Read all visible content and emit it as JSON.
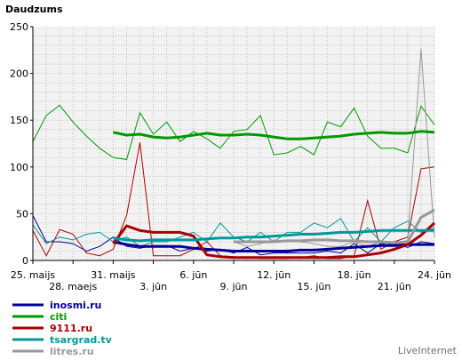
{
  "chart_data": {
    "type": "line",
    "title": "Daudzums",
    "ylim": [
      0,
      250
    ],
    "yticks": [
      0,
      50,
      100,
      150,
      200,
      250
    ],
    "x_count": 31,
    "x_tick_labels": [
      {
        "i": 0,
        "label": "25. maijs",
        "row": 1
      },
      {
        "i": 3,
        "label": "28. maejs",
        "row": 2
      },
      {
        "i": 6,
        "label": "31. maijs",
        "row": 1
      },
      {
        "i": 9,
        "label": "3. jūn",
        "row": 2
      },
      {
        "i": 12,
        "label": "6. jūn",
        "row": 1
      },
      {
        "i": 15,
        "label": "9. jūn",
        "row": 2
      },
      {
        "i": 18,
        "label": "12. jūn",
        "row": 1
      },
      {
        "i": 21,
        "label": "15. jūn",
        "row": 2
      },
      {
        "i": 24,
        "label": "18. jūn",
        "row": 1
      },
      {
        "i": 27,
        "label": "21. jūn",
        "row": 2
      },
      {
        "i": 30,
        "label": "24. jūn",
        "row": 1
      }
    ],
    "grid": true,
    "legend_position": "bottom-left",
    "series": [
      {
        "name": "inosmi.ru",
        "color": "#000099",
        "daily": [
          48,
          20,
          20,
          18,
          10,
          15,
          25,
          15,
          13,
          16,
          16,
          10,
          13,
          10,
          12,
          8,
          14,
          6,
          8,
          8,
          8,
          8,
          10,
          8,
          18,
          8,
          18,
          18,
          14,
          20,
          18
        ],
        "avg_start": 6,
        "average": [
          20,
          17,
          15,
          15,
          15,
          15,
          13,
          12,
          11,
          10,
          10,
          10,
          10,
          10,
          11,
          11,
          12,
          13,
          14,
          15,
          16,
          16,
          17,
          17,
          17
        ]
      },
      {
        "name": "citi",
        "color": "#009900",
        "daily": [
          127,
          155,
          166,
          148,
          133,
          120,
          110,
          108,
          158,
          135,
          148,
          127,
          138,
          130,
          120,
          138,
          140,
          155,
          113,
          115,
          122,
          113,
          148,
          143,
          163,
          133,
          120,
          120,
          115,
          165,
          145
        ],
        "avg_start": 6,
        "average": [
          137,
          134,
          135,
          132,
          131,
          132,
          134,
          136,
          134,
          134,
          135,
          134,
          132,
          130,
          130,
          131,
          132,
          133,
          135,
          136,
          137,
          136,
          136,
          138,
          137
        ]
      },
      {
        "name": "9111.ru",
        "color": "#aa0000",
        "daily": [
          32,
          5,
          33,
          28,
          8,
          5,
          12,
          48,
          126,
          5,
          5,
          5,
          12,
          20,
          5,
          4,
          3,
          2,
          2,
          2,
          3,
          5,
          2,
          2,
          5,
          64,
          12,
          20,
          25,
          98,
          100
        ],
        "avg_start": 6,
        "average": [
          18,
          37,
          32,
          30,
          30,
          30,
          26,
          6,
          4,
          3,
          3,
          3,
          3,
          3,
          3,
          3,
          3,
          4,
          4,
          6,
          8,
          12,
          17,
          27,
          40
        ]
      },
      {
        "name": "tsargrad.tv",
        "color": "#009999",
        "daily": [
          38,
          18,
          25,
          22,
          28,
          30,
          20,
          25,
          15,
          20,
          20,
          25,
          30,
          20,
          40,
          25,
          20,
          30,
          20,
          30,
          30,
          40,
          35,
          45,
          20,
          35,
          20,
          35,
          42,
          30,
          35
        ],
        "avg_start": 6,
        "average": [
          24,
          22,
          21,
          22,
          22,
          22,
          22,
          23,
          24,
          24,
          25,
          25,
          26,
          27,
          28,
          28,
          29,
          30,
          30,
          31,
          32,
          32,
          32,
          32,
          32
        ]
      },
      {
        "name": "litres.ru",
        "color": "#999999",
        "daily": [
          null,
          null,
          null,
          null,
          null,
          null,
          null,
          null,
          null,
          null,
          null,
          null,
          null,
          null,
          null,
          20,
          15,
          18,
          22,
          20,
          20,
          18,
          15,
          15,
          20,
          15,
          20,
          15,
          22,
          226,
          25
        ],
        "avg_start": 15,
        "average": [
          20,
          20,
          20,
          20,
          21,
          21,
          22,
          22,
          21,
          21,
          20,
          20,
          19,
          20,
          46,
          54
        ]
      }
    ]
  },
  "legend": {
    "items": [
      {
        "label": "inosmi.ru",
        "color": "#000099"
      },
      {
        "label": "citi",
        "color": "#009900"
      },
      {
        "label": "9111.ru",
        "color": "#aa0000"
      },
      {
        "label": "tsargrad.tv",
        "color": "#009999"
      },
      {
        "label": "litres.ru",
        "color": "#999999"
      }
    ]
  },
  "brand": "LiveInternet"
}
